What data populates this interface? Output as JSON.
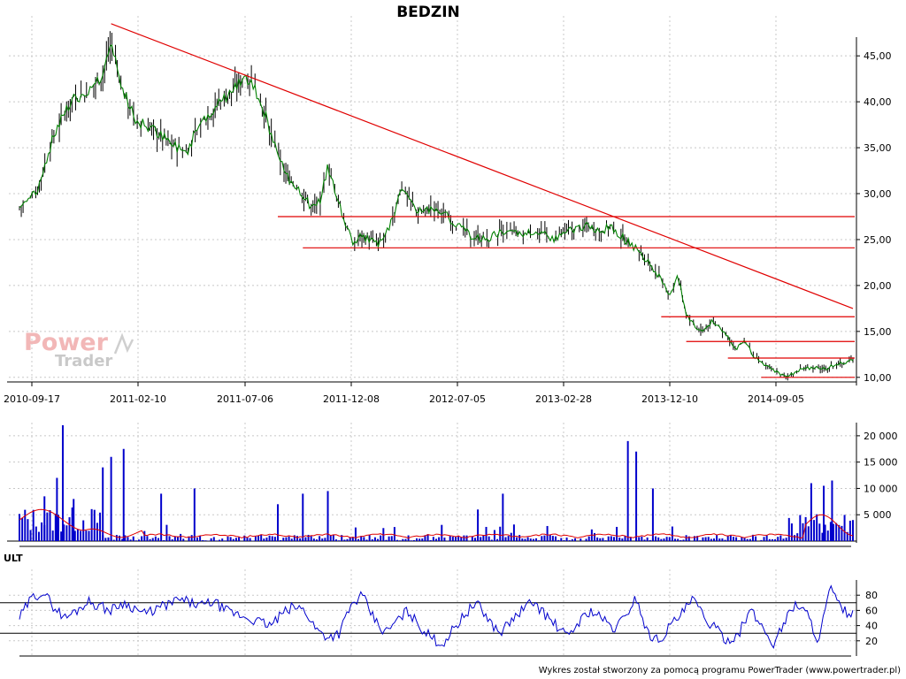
{
  "title": "BEDZIN",
  "footer": "Wykres został stworzony za pomocą programu PowerTrader (www.powertrader.pl)",
  "logo": {
    "line1": "Power",
    "line2": "Trader"
  },
  "colors": {
    "price": "#008000",
    "candle": "#000000",
    "trend": "#e00000",
    "volume": "#0000cc",
    "volume_avg": "#e00000",
    "indicator": "#0000cc"
  },
  "chart_data": [
    {
      "type": "line",
      "title": "BEDZIN",
      "x_tick_labels": [
        "2010-09-17",
        "2011-02-10",
        "2011-07-06",
        "2011-12-08",
        "2012-07-05",
        "2013-02-28",
        "2013-12-10",
        "2014-09-05"
      ],
      "y_tick_labels": [
        "10,00",
        "15,00",
        "20,00",
        "25,00",
        "30,00",
        "35,00",
        "40,00",
        "45,00"
      ],
      "ylim": [
        9.5,
        48
      ],
      "grid": true,
      "series": [
        {
          "x": [
            0,
            0.02,
            0.04,
            0.06,
            0.08,
            0.1,
            0.11,
            0.12,
            0.14,
            0.16,
            0.18,
            0.2,
            0.22,
            0.24,
            0.26,
            0.27,
            0.28,
            0.29,
            0.3,
            0.32,
            0.34,
            0.35,
            0.36,
            0.37,
            0.38,
            0.39,
            0.4,
            0.41,
            0.42,
            0.43,
            0.44,
            0.45,
            0.46,
            0.47,
            0.48,
            0.5,
            0.52,
            0.54,
            0.56,
            0.58,
            0.6,
            0.62,
            0.64,
            0.66,
            0.68,
            0.7,
            0.71,
            0.72,
            0.74,
            0.76,
            0.78,
            0.79,
            0.8,
            0.81,
            0.82,
            0.83,
            0.84,
            0.85,
            0.86,
            0.87,
            0.88,
            0.89,
            0.9,
            0.91,
            0.92,
            0.93,
            0.94,
            0.95,
            0.96,
            0.97,
            0.98,
            0.99,
            1.0
          ],
          "values": [
            28.5,
            30,
            36,
            40,
            41,
            43,
            46.5,
            42,
            38,
            37,
            35.5,
            34.5,
            38,
            40,
            41.5,
            43,
            42,
            40,
            37,
            32,
            30,
            28.5,
            29,
            33,
            30,
            27,
            24.5,
            25.5,
            25,
            24.5,
            25.5,
            28,
            31,
            29,
            28,
            28.5,
            27,
            25.5,
            25,
            26,
            25.5,
            26,
            25,
            26,
            26.5,
            26,
            26.5,
            25.5,
            24,
            22,
            19,
            21,
            17,
            15.5,
            15,
            16,
            15.5,
            14.5,
            13,
            14,
            12.5,
            11.5,
            11,
            10.5,
            10,
            10.5,
            11,
            11,
            11,
            11,
            11.5,
            11.5,
            12
          ]
        }
      ],
      "annotations": {
        "trendline": {
          "from": [
            0.11,
            48.5
          ],
          "to": [
            1.0,
            17.5
          ]
        },
        "horizontal_levels": [
          {
            "value": 27.5,
            "x_from": 0.31
          },
          {
            "value": 24.1,
            "x_from": 0.34
          },
          {
            "value": 16.6,
            "x_from": 0.77
          },
          {
            "value": 13.9,
            "x_from": 0.8
          },
          {
            "value": 12.1,
            "x_from": 0.85
          },
          {
            "value": 10.0,
            "x_from": 0.89
          }
        ]
      }
    },
    {
      "type": "bar",
      "y_tick_labels": [
        "5 000",
        "10 000",
        "15 000",
        "20 000"
      ],
      "ylim": [
        0,
        22500
      ],
      "grid": true,
      "spikes": [
        {
          "x": 0.03,
          "value": 8500
        },
        {
          "x": 0.045,
          "value": 12000
        },
        {
          "x": 0.052,
          "value": 22000
        },
        {
          "x": 0.065,
          "value": 8000
        },
        {
          "x": 0.1,
          "value": 14000
        },
        {
          "x": 0.11,
          "value": 16000
        },
        {
          "x": 0.125,
          "value": 17500
        },
        {
          "x": 0.17,
          "value": 9000
        },
        {
          "x": 0.21,
          "value": 10000
        },
        {
          "x": 0.31,
          "value": 7000
        },
        {
          "x": 0.34,
          "value": 9000
        },
        {
          "x": 0.37,
          "value": 9500
        },
        {
          "x": 0.55,
          "value": 6000
        },
        {
          "x": 0.58,
          "value": 9000
        },
        {
          "x": 0.73,
          "value": 19000
        },
        {
          "x": 0.74,
          "value": 17000
        },
        {
          "x": 0.76,
          "value": 10000
        },
        {
          "x": 0.95,
          "value": 11000
        },
        {
          "x": 0.965,
          "value": 10500
        },
        {
          "x": 0.975,
          "value": 11500
        }
      ],
      "avg_level_range": [
        300,
        6000
      ]
    },
    {
      "type": "line",
      "label": "ULT",
      "y_tick_labels": [
        "20",
        "40",
        "60",
        "80"
      ],
      "ylim": [
        0,
        100
      ],
      "levels": [
        30,
        70
      ],
      "grid": true,
      "values": [
        50,
        75,
        85,
        65,
        50,
        60,
        72,
        66,
        60,
        70,
        64,
        55,
        62,
        68,
        74,
        70,
        66,
        72,
        60,
        55,
        50,
        45,
        40,
        55,
        65,
        60,
        35,
        25,
        30,
        65,
        80,
        50,
        30,
        45,
        60,
        40,
        25,
        15,
        35,
        55,
        70,
        50,
        30,
        45,
        60,
        72,
        55,
        40,
        25,
        45,
        60,
        50,
        35,
        50,
        78,
        30,
        20,
        40,
        55,
        75,
        50,
        35,
        20,
        30,
        60,
        40,
        15,
        45,
        70,
        55,
        20,
        90,
        60,
        55
      ]
    }
  ]
}
